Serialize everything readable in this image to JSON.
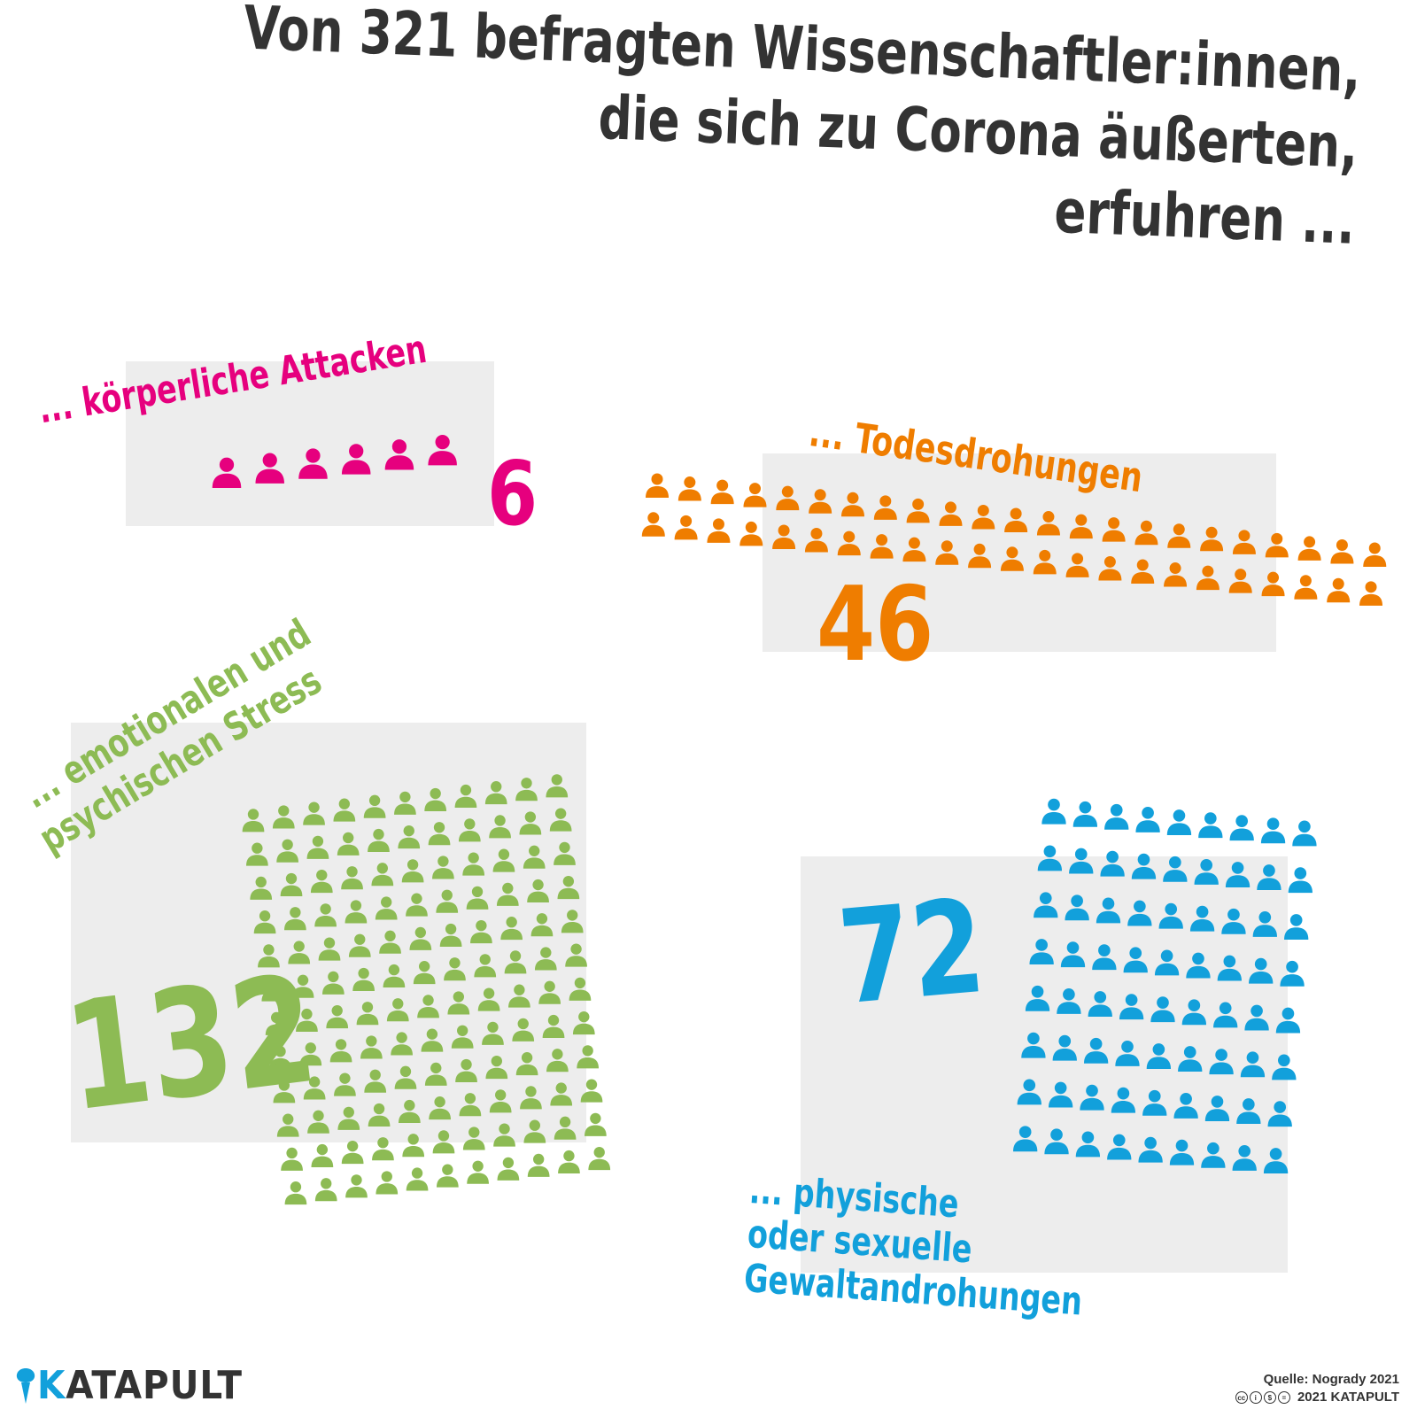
{
  "title": {
    "line1": "Von 321 befragten Wissenschaftler:innen,",
    "line2": "die sich zu Corona äußerten,",
    "line3": "erfuhren ..."
  },
  "colors": {
    "pink": "#e6007e",
    "orange": "#ef7d00",
    "green": "#8dbb54",
    "blue": "#12a0db",
    "panel": "#ededed",
    "text": "#333333"
  },
  "chart_data": {
    "type": "bar",
    "title": "Von 321 befragten Wissenschaftler:innen, die sich zu Corona äußerten, erfuhren ...",
    "total": 321,
    "categories": [
      "... körperliche Attacken",
      "... Todesdrohungen",
      "... emotionalen und psychischen Stress",
      "... physische oder sexuelle Gewaltandrohungen"
    ],
    "values": [
      6,
      46,
      132,
      72
    ],
    "series": [
      {
        "label": "... körperliche Attacken",
        "value": 6,
        "color": "#e6007e",
        "icon": "person-icon"
      },
      {
        "label": "... Todesdrohungen",
        "value": 46,
        "color": "#ef7d00",
        "icon": "person-icon"
      },
      {
        "label": "... emotionalen und psychischen Stress",
        "value": 132,
        "color": "#8dbb54",
        "icon": "person-icon"
      },
      {
        "label": "... physische oder sexuelle Gewaltandrohungen",
        "value": 72,
        "color": "#12a0db",
        "icon": "person-icon"
      }
    ]
  },
  "labels": {
    "attacks": "... körperliche Attacken",
    "attacks_value": "6",
    "death": "... Todesdrohungen",
    "death_value": "46",
    "stress_line1": "... emotionalen und",
    "stress_line2": "psychischen Stress",
    "stress_value": "132",
    "violence_line1": "... physische",
    "violence_line2": "oder sexuelle",
    "violence_line3": "Gewaltandrohungen",
    "violence_value": "72"
  },
  "footer": {
    "brand_k": "K",
    "brand_rest": "ATAPULT",
    "logo_icon": "catapult-icon",
    "source": "Quelle: Nogrady 2021",
    "license_icons": [
      "cc",
      "by",
      "nc",
      "nd"
    ],
    "license_text": "2021 KATAPULT"
  }
}
